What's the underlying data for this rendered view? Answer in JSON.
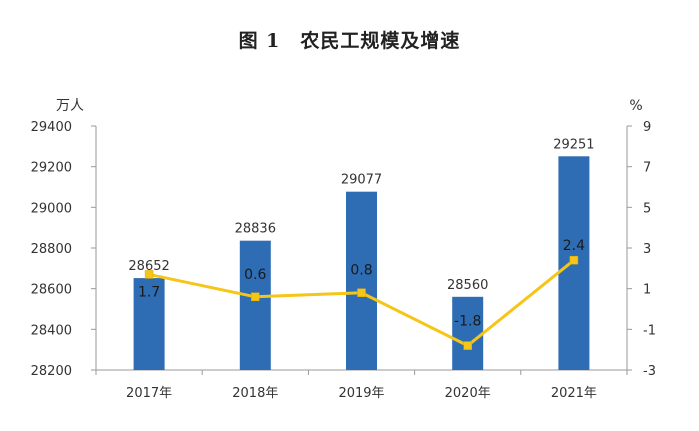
{
  "figure": {
    "number": "图 1",
    "title": "农民工规模及增速"
  },
  "chart_data": {
    "type": "bar",
    "title": "农民工规模及增速",
    "categories": [
      "2017年",
      "2018年",
      "2019年",
      "2020年",
      "2021年"
    ],
    "series": [
      {
        "kind": "bar",
        "axis": "left",
        "color": "#2e6db4",
        "values": [
          28652,
          28836,
          29077,
          28560,
          29251
        ],
        "labels": [
          "28652",
          "28836",
          "29077",
          "28560",
          "29251"
        ]
      },
      {
        "kind": "line",
        "axis": "right",
        "color": "#f5c518",
        "values": [
          1.7,
          0.6,
          0.8,
          -1.8,
          2.4
        ],
        "labels": [
          "1.7",
          "0.6",
          "0.8",
          "-1.8",
          "2.4"
        ]
      }
    ],
    "left_axis": {
      "unit": "万人",
      "min": 28200,
      "max": 29400,
      "ticks": [
        28200,
        28400,
        28600,
        28800,
        29000,
        29200,
        29400
      ],
      "tick_labels": [
        "28200",
        "28400",
        "28600",
        "28800",
        "29000",
        "29200",
        "29400"
      ]
    },
    "right_axis": {
      "unit": "%",
      "min": -3,
      "max": 9,
      "ticks": [
        -3,
        -1,
        1,
        3,
        5,
        7,
        9
      ],
      "tick_labels": [
        "-3",
        "-1",
        "1",
        "3",
        "5",
        "7",
        "9"
      ]
    },
    "grid": false,
    "legend": "none"
  }
}
